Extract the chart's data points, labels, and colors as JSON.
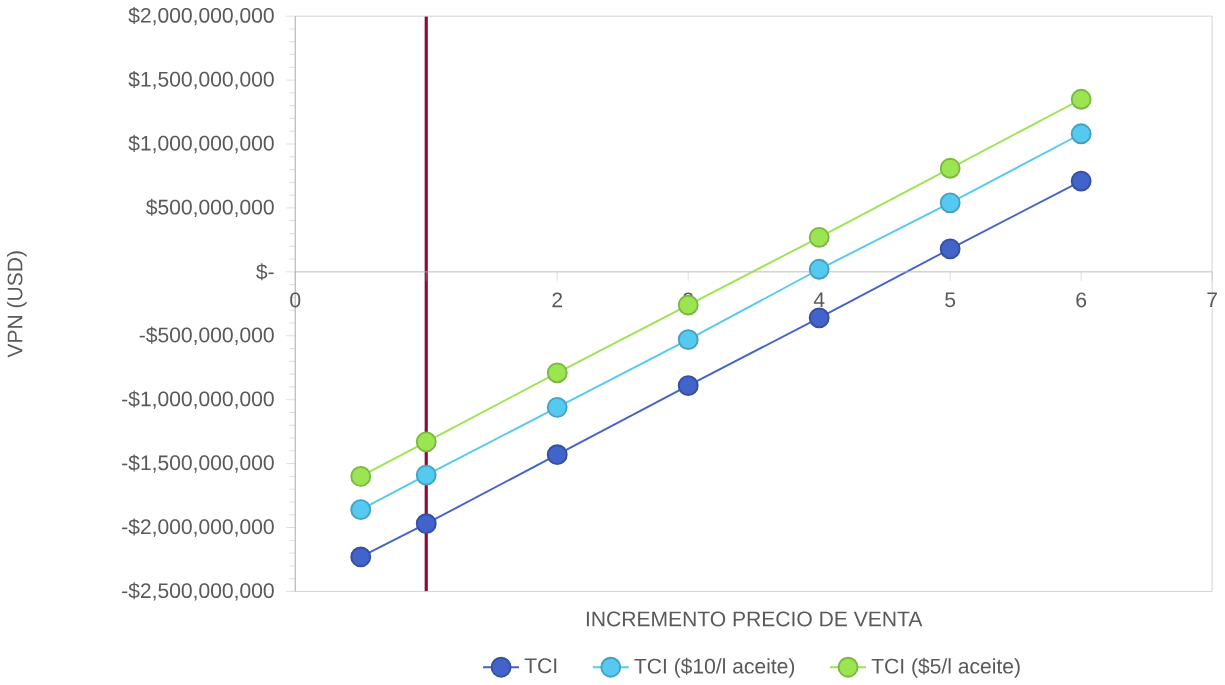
{
  "chart_data": {
    "type": "line",
    "xlabel": "INCREMENTO PRECIO DE VENTA",
    "ylabel": "VPN (USD)",
    "x": [
      0.5,
      1,
      2,
      3,
      4,
      5,
      6
    ],
    "series": [
      {
        "name": "TCI",
        "color": "#4263c9",
        "values": [
          -2230000000,
          -1970000000,
          -1430000000,
          -890000000,
          -360000000,
          180000000,
          710000000
        ]
      },
      {
        "name": "TCI ($10/l aceite)",
        "color": "#55c9f0",
        "values": [
          -1860000000,
          -1590000000,
          -1060000000,
          -530000000,
          20000000,
          540000000,
          1080000000
        ]
      },
      {
        "name": "TCI ($5/l aceite)",
        "color": "#9be552",
        "values": [
          -1600000000,
          -1330000000,
          -790000000,
          -260000000,
          270000000,
          810000000,
          1350000000
        ]
      }
    ],
    "xlim": [
      0,
      7
    ],
    "xticks": [
      0,
      {
        "value": 1,
        "label": null
      },
      2,
      3,
      4,
      5,
      6,
      7
    ],
    "ylim": [
      -2500000000,
      2000000000
    ],
    "yticks": [
      {
        "value": -2500000000,
        "label": "-$2,500,000,000"
      },
      {
        "value": -2000000000,
        "label": "-$2,000,000,000"
      },
      {
        "value": -1500000000,
        "label": "-$1,500,000,000"
      },
      {
        "value": -1000000000,
        "label": "-$1,000,000,000"
      },
      {
        "value": -500000000,
        "label": "-$500,000,000"
      },
      {
        "value": 0,
        "label": "$-"
      },
      {
        "value": 500000000,
        "label": "$500,000,000"
      },
      {
        "value": 1000000000,
        "label": "$1,000,000,000"
      },
      {
        "value": 1500000000,
        "label": "$1,500,000,000"
      },
      {
        "value": 2000000000,
        "label": "$2,000,000,000"
      }
    ],
    "ref_lines": [
      {
        "axis": "x",
        "value": 1,
        "color": "#8b0a37"
      }
    ],
    "marker": "circle",
    "line_style": "solid",
    "legend": "bottom",
    "grid": false
  }
}
